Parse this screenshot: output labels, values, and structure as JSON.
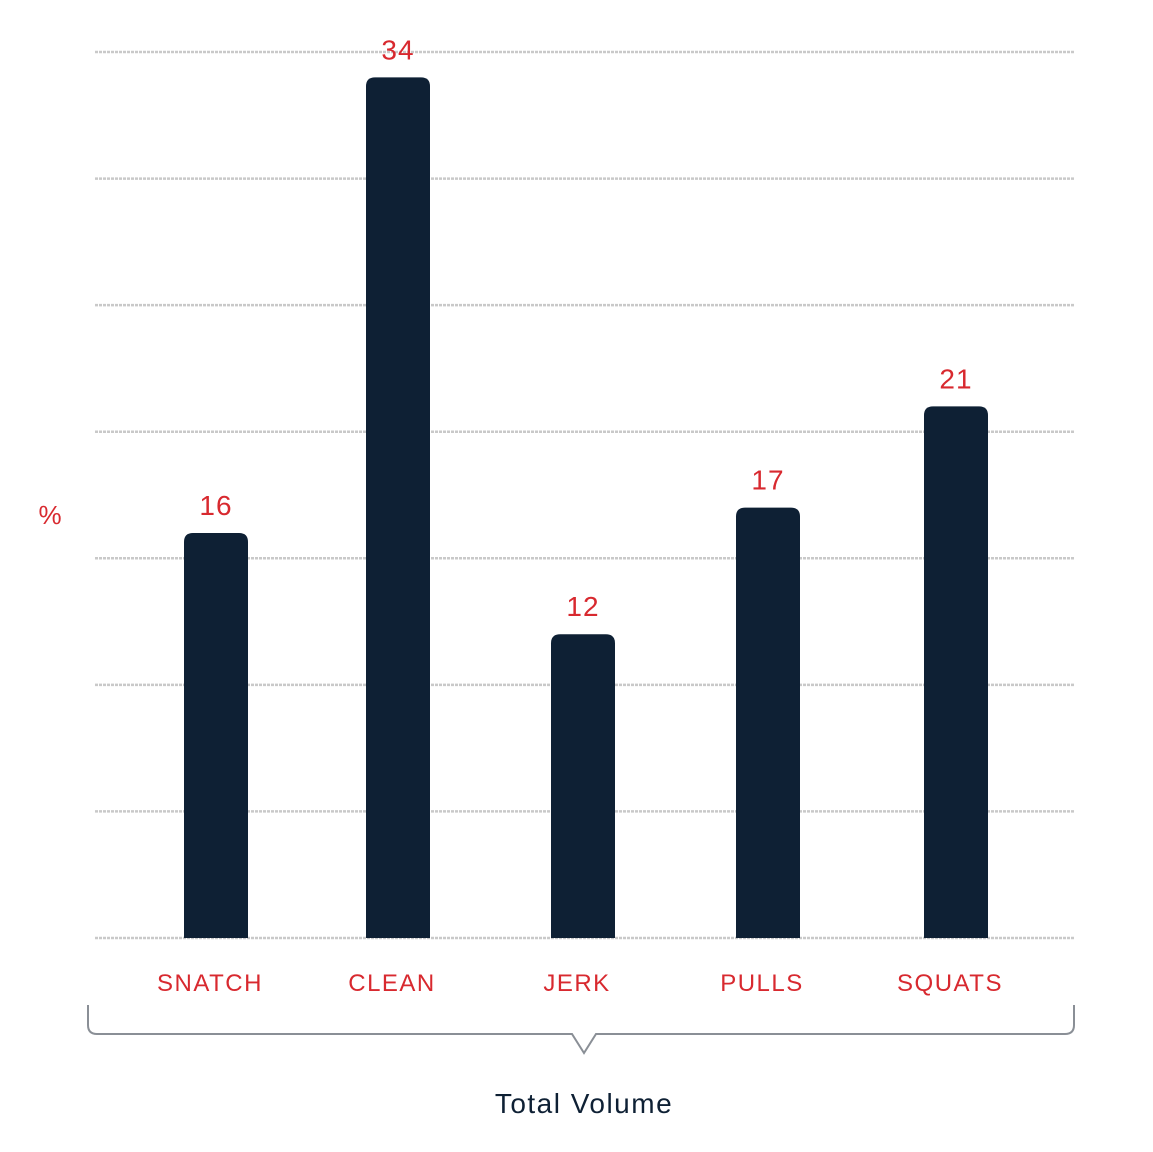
{
  "chart_data": {
    "type": "bar",
    "categories": [
      "SNATCH",
      "CLEAN",
      "JERK",
      "PULLS",
      "SQUATS"
    ],
    "values": [
      16,
      34,
      12,
      17,
      21
    ],
    "title": "",
    "xlabel": "Total Volume",
    "ylabel": "%",
    "ylim": [
      0,
      35
    ],
    "grid": true,
    "colors": {
      "bar": "#0e2034",
      "labels": "#d8292f",
      "gridline": "#c9c9c9"
    }
  }
}
